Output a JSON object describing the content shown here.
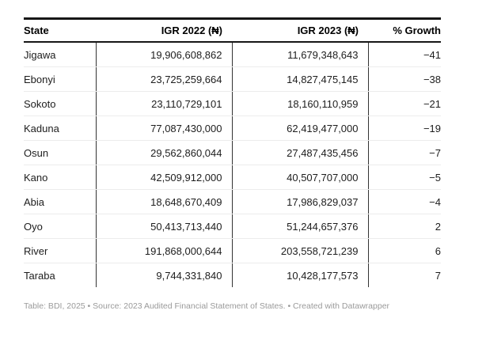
{
  "table": {
    "header": [
      "State",
      "IGR 2022 (₦)",
      "IGR 2023 (₦)",
      "% Growth"
    ],
    "rows": [
      [
        "Jigawa",
        "19,906,608,862",
        "11,679,348,643",
        "−41"
      ],
      [
        "Ebonyi",
        "23,725,259,664",
        "14,827,475,145",
        "−38"
      ],
      [
        "Sokoto",
        "23,110,729,101",
        "18,160,110,959",
        "−21"
      ],
      [
        "Kaduna",
        "77,087,430,000",
        "62,419,477,000",
        "−19"
      ],
      [
        "Osun",
        "29,562,860,044",
        "27,487,435,456",
        "−7"
      ],
      [
        "Kano",
        "42,509,912,000",
        "40,507,707,000",
        "−5"
      ],
      [
        "Abia",
        "18,648,670,409",
        "17,986,829,037",
        "−4"
      ],
      [
        "Oyo",
        "50,413,713,440",
        "51,244,657,376",
        "2"
      ],
      [
        "River",
        "191,868,000,644",
        "203,558,721,239",
        "6"
      ],
      [
        "Taraba",
        "9,744,331,840",
        "10,428,177,573",
        "7"
      ]
    ]
  },
  "footer": {
    "text": "Table: BDI, 2025 • Source: 2023 Audited Financial Statement of States. • Created with Datawrapper"
  },
  "colors": {
    "background": "#ffffff",
    "header_rule": "#161616",
    "header_text": "#000000",
    "body_text": "#1d1d1d",
    "column_rule": "#333333",
    "row_rule": "#ececec",
    "footer_text": "#9a9a9a"
  },
  "chart_data": {
    "type": "table",
    "columns": [
      "State",
      "IGR 2022 (₦)",
      "IGR 2023 (₦)",
      "% Growth"
    ],
    "rows": [
      {
        "state": "Jigawa",
        "igr_2022": 19906608862,
        "igr_2023": 11679348643,
        "growth_pct": -41
      },
      {
        "state": "Ebonyi",
        "igr_2022": 23725259664,
        "igr_2023": 14827475145,
        "growth_pct": -38
      },
      {
        "state": "Sokoto",
        "igr_2022": 23110729101,
        "igr_2023": 18160110959,
        "growth_pct": -21
      },
      {
        "state": "Kaduna",
        "igr_2022": 77087430000,
        "igr_2023": 62419477000,
        "growth_pct": -19
      },
      {
        "state": "Osun",
        "igr_2022": 29562860044,
        "igr_2023": 27487435456,
        "growth_pct": -7
      },
      {
        "state": "Kano",
        "igr_2022": 42509912000,
        "igr_2023": 40507707000,
        "growth_pct": -5
      },
      {
        "state": "Abia",
        "igr_2022": 18648670409,
        "igr_2023": 17986829037,
        "growth_pct": -4
      },
      {
        "state": "Oyo",
        "igr_2022": 50413713440,
        "igr_2023": 51244657376,
        "growth_pct": 2
      },
      {
        "state": "River",
        "igr_2022": 191868000644,
        "igr_2023": 203558721239,
        "growth_pct": 6
      },
      {
        "state": "Taraba",
        "igr_2022": 9744331840,
        "igr_2023": 10428177573,
        "growth_pct": 7
      }
    ],
    "notes": "Table: BDI, 2025 • Source: 2023 Audited Financial Statement of States. • Created with Datawrapper",
    "layout_hints": {
      "column_alignment": [
        "left",
        "right",
        "right",
        "right"
      ],
      "vertical_rules_between_columns": true,
      "sorted_by": "growth_pct ascending"
    }
  }
}
